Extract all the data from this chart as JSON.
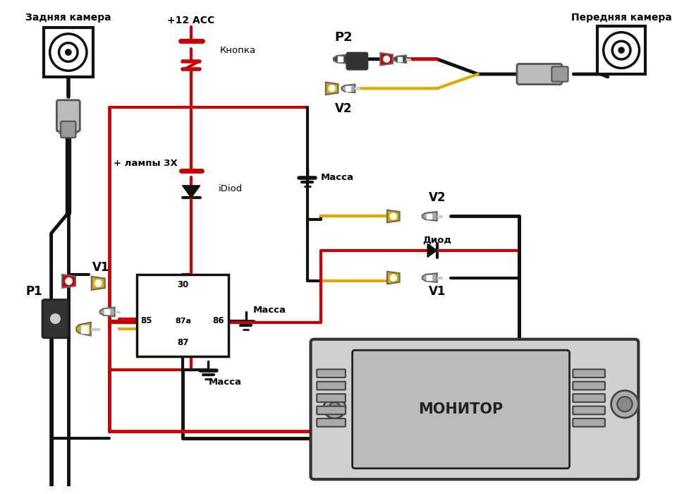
{
  "bg": "#ffffff",
  "red": "#cc0000",
  "blk": "#111111",
  "yel": "#ddaa00",
  "gray": "#aaaaaa",
  "dgray": "#666666",
  "lgray": "#cccccc",
  "labels": {
    "rear_camera": "Задняя камера",
    "front_camera": "Передняя камера",
    "acc": "+12 ACC",
    "knopka": "Кнопка",
    "lamp": "+ лампы 3X",
    "idiod": "iDiod",
    "massa": "Масса",
    "diod": "Диод",
    "monitor": "МОНИТОР",
    "P1": "P1",
    "P2": "P2",
    "V1": "V1",
    "V2": "V2",
    "r30": "30",
    "r85": "85",
    "r86": "86",
    "r87a": "87a",
    "r87": "87"
  }
}
